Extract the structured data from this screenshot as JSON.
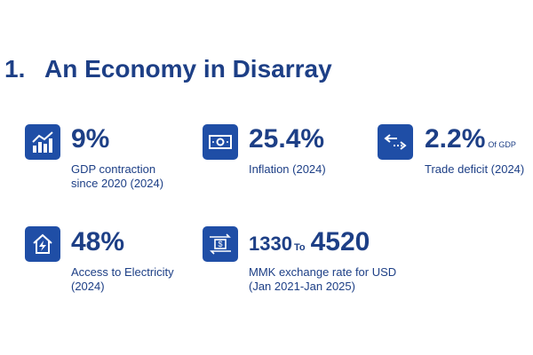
{
  "header": {
    "number": "1.",
    "title": "An Economy in Disarray"
  },
  "stats": [
    {
      "value": "9%",
      "label_lines": [
        "GDP contraction",
        "since 2020 (2024)"
      ]
    },
    {
      "value": "25.4%",
      "label_lines": [
        "Inflation (2024)"
      ]
    },
    {
      "value": "2.2%",
      "suffix": "Of GDP",
      "label_lines": [
        "Trade deficit (2024)"
      ]
    },
    {
      "value": "48%",
      "label_lines": [
        "Access to Electricity",
        "(2024)"
      ]
    },
    {
      "value_from": "1330",
      "connector": "To",
      "value": "4520",
      "label_lines": [
        "MMK exchange rate for USD",
        "(Jan 2021-Jan 2025)"
      ]
    }
  ]
}
